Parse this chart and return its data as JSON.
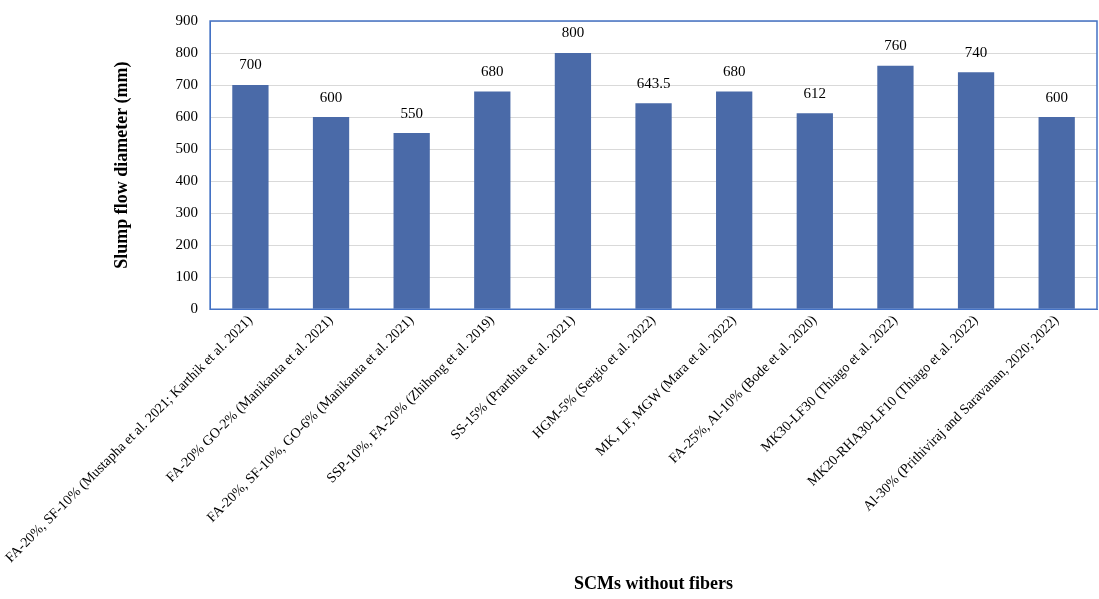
{
  "chart_data": {
    "type": "bar",
    "xlabel": "SCMs without fibers",
    "ylabel": "Slump flow diameter (mm)",
    "categories": [
      "FA-20%, SF-10% (Mustapha et al. 2021; Karthik et al. 2021)",
      "FA-20% GO-2% (Manikanta et al. 2021)",
      "FA-20%, SF-10%, GO-6% (Manikanta et al. 2021)",
      "SSP-10%, FA-20% (Zhihong et al. 2019)",
      "SS-15% (Prarthita et al. 2021)",
      "HGM-5% (Sergio et al. 2022)",
      "MK, LF, MGW (Mara et al. 2022)",
      "FA-25%, Al-10% (Bode et al. 2020)",
      "MK30-LF30 (Thiago et al. 2022)",
      "MK20-RHA30-LF10 (Thiago et al. 2022)",
      "Al-30% (Prithiviraj and Saravanan, 2020; 2022)"
    ],
    "values": [
      700,
      600,
      550,
      680,
      800,
      643.5,
      680,
      612,
      760,
      740,
      600
    ],
    "color": "#4a6aa8",
    "ylim": [
      0,
      900
    ],
    "yticks": [
      0,
      100,
      200,
      300,
      400,
      500,
      600,
      700,
      800,
      900
    ],
    "grid": "y",
    "data_labels": true
  }
}
